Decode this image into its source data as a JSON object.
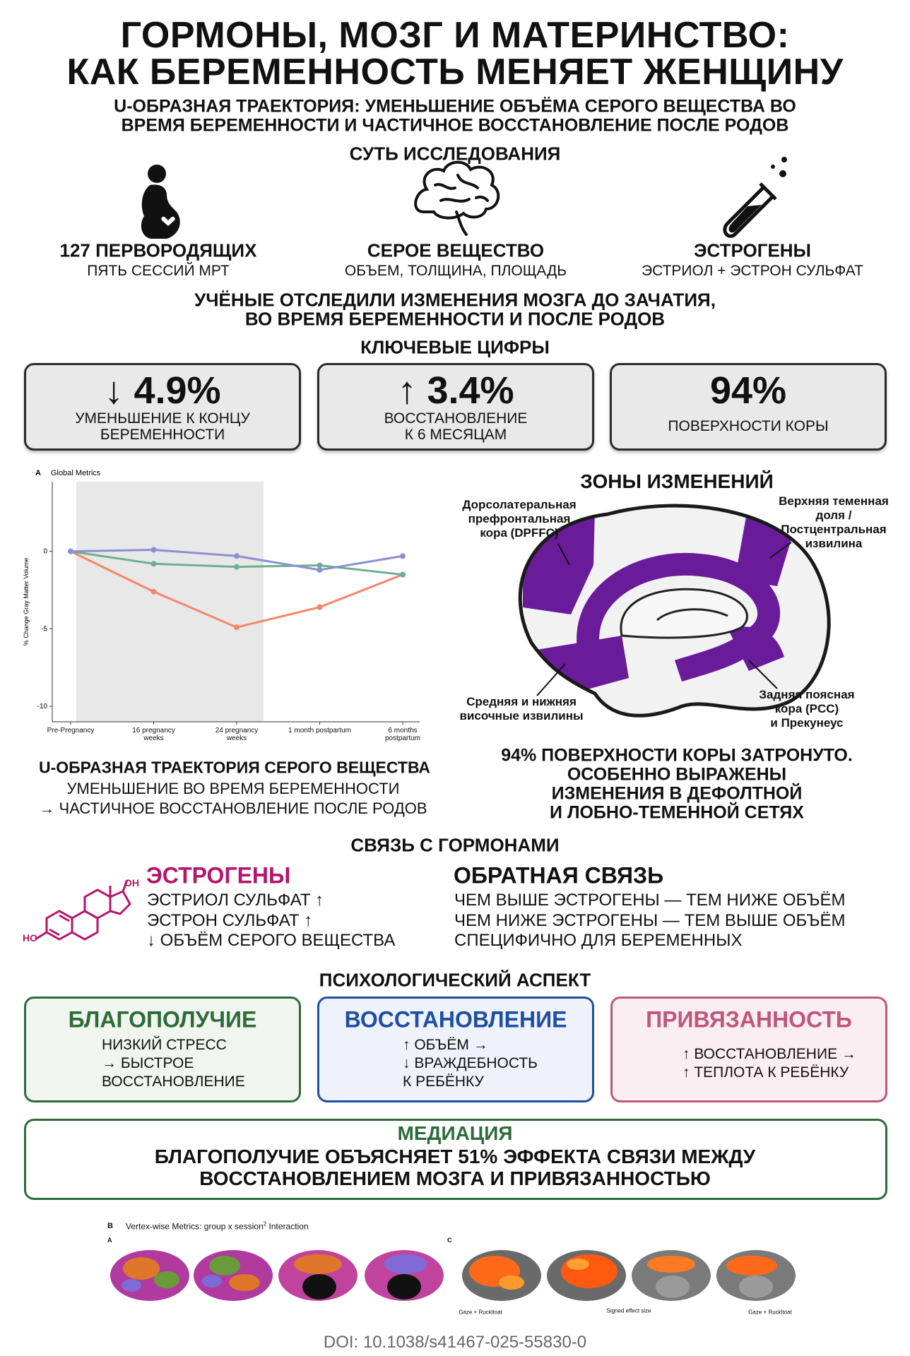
{
  "header": {
    "title_lines": [
      "ГОРМОНЫ, МОЗГ И МАТЕРИНСТВО:",
      "КАК БЕРЕМЕННОСТЬ МЕНЯЕТ ЖЕНЩИНУ"
    ],
    "subtitle_lines": [
      "U-ОБРАЗНАЯ ТРАЕКТОРИЯ: УМЕНЬШЕНИЕ ОБЪЁМА СЕРОГО ВЕЩЕСТВА ВО",
      "ВРЕМЯ БЕРЕМЕННОСТИ И ЧАСТИЧНОЕ ВОССТАНОВЛЕНИЕ ПОСЛЕ РОДОВ"
    ]
  },
  "study": {
    "heading": "СУТЬ ИССЛЕДОВАНИЯ",
    "items": [
      {
        "label": "127 ПЕРВОРОДЯЩИХ",
        "sub": "ПЯТЬ СЕССИЙ МРТ"
      },
      {
        "label": "СЕРОЕ ВЕЩЕСТВО",
        "sub": "ОБЪЕМ, ТОЛЩИНА, ПЛОЩАДЬ"
      },
      {
        "label": "ЭСТРОГЕНЫ",
        "sub": "ЭСТРИОЛ + ЭСТРОН СУЛЬФАТ"
      }
    ],
    "summary_lines": [
      "УЧЁНЫЕ ОТСЛЕДИЛИ ИЗМЕНЕНИЯ МОЗГА ДО ЗАЧАТИЯ,",
      "ВО ВРЕМЯ БЕРЕМЕННОСТИ И ПОСЛЕ РОДОВ"
    ]
  },
  "key_figures": {
    "heading": "КЛЮЧЕВЫЕ ЦИФРЫ",
    "items": [
      {
        "value": "↓ 4.9%",
        "lines": [
          "УМЕНЬШЕНИЕ К КОНЦУ",
          "БЕРЕМЕННОСТИ"
        ]
      },
      {
        "value": "↑ 3.4%",
        "lines": [
          "ВОССТАНОВЛЕНИЕ",
          "К 6 МЕСЯЦАМ"
        ]
      },
      {
        "value": "94%",
        "lines": [
          "ПОВЕРХНОСТИ КОРЫ"
        ]
      }
    ]
  },
  "chart_data": {
    "type": "line",
    "panel_label": "A",
    "title": "Global Metrics",
    "y_label": "% Change Gray Matter Volume",
    "categories": [
      "Pre-Pregnancy",
      "16 pregnancy weeks",
      "24 pregnancy weeks",
      "1 month postpartum",
      "6 months postpartum"
    ],
    "ylim": [
      -11,
      4.5
    ],
    "yticks": [
      0,
      -5,
      -10
    ],
    "series": [
      {
        "color": "#f4866a",
        "values": [
          0,
          -2.6,
          -4.9,
          -3.6,
          -1.5
        ]
      },
      {
        "color": "#6faf8e",
        "values": [
          0,
          -0.8,
          -1.0,
          -0.9,
          -1.5
        ]
      },
      {
        "color": "#8b90d2",
        "values": [
          0,
          0.1,
          -0.3,
          -1.2,
          -0.3
        ]
      }
    ]
  },
  "zones": {
    "heading": "ЗОНЫ ИЗМЕНЕНИЙ",
    "labels": [
      [
        "Дорсолатеральная",
        "префронтальная",
        "кора (DPFFC)"
      ],
      [
        "Верхняя теменная",
        "доля /",
        "Постцентральная",
        "извилина"
      ],
      [
        "Средняя и нижняя",
        "височные извилины"
      ],
      [
        "Задняя поясная",
        "кора (PCC)",
        "и Прекунеус"
      ]
    ],
    "caption_lines": [
      "94% ПОВЕРХНОСТИ КОРЫ ЗАТРОНУТО.",
      "ОСОБЕННО ВЫРАЖЕНЫ",
      "ИЗМЕНЕНИЯ В ДЕФОЛТНОЙ",
      "И ЛОБНО-ТЕМЕННОЙ СЕТЯХ"
    ]
  },
  "trajectory": {
    "title": "U-ОБРАЗНАЯ ТРАЕКТОРИЯ СЕРОГО ВЕЩЕСТВА",
    "lines": [
      "УМЕНЬШЕНИЕ ВО ВРЕМЯ БЕРЕМЕННОСТИ",
      "→ ЧАСТИЧНОЕ ВОССТАНОВЛЕНИЕ ПОСЛЕ РОДОВ"
    ]
  },
  "hormones": {
    "heading": "СВЯЗЬ С ГОРМОНАМИ",
    "molecule_labels": [
      "OH",
      "HO"
    ],
    "estrogens": {
      "title": "ЭСТРОГЕНЫ",
      "lines": [
        "ЭСТРИОЛ СУЛЬФАТ ↑",
        "ЭСТРОН СУЛЬФАТ ↑",
        "↓ ОБЪЁМ СЕРОГО ВЕЩЕСТВА"
      ]
    },
    "feedback": {
      "title": "ОБРАТНАЯ СВЯЗЬ",
      "lines": [
        "ЧЕМ ВЫШЕ ЭСТРОГЕНЫ — ТЕМ НИЖЕ ОБЪЁМ",
        "ЧЕМ НИЖЕ ЭСТРОГЕНЫ — ТЕМ ВЫШЕ ОБЪЁМ",
        "СПЕЦИФИЧНО ДЛЯ БЕРЕМЕННЫХ"
      ]
    }
  },
  "psych": {
    "heading": "ПСИХОЛОГИЧЕСКИЙ АСПЕКТ",
    "cards": [
      {
        "title": "БЛАГОПОЛУЧИЕ",
        "lines": [
          "НИЗКИЙ СТРЕСС",
          "→ БЫСТРОЕ",
          "ВОССТАНОВЛЕНИЕ"
        ]
      },
      {
        "title": "ВОССТАНОВЛЕНИЕ",
        "lines": [
          "↑ ОБЪЁМ →",
          "↓ ВРАЖДЕБНОСТЬ",
          "К РЕБЁНКУ"
        ]
      },
      {
        "title": "ПРИВЯЗАННОСТЬ",
        "lines": [
          "↑ ВОССТАНОВЛЕНИЕ →",
          "↑ ТЕПЛОТА К РЕБЁНКУ"
        ]
      }
    ]
  },
  "mediation": {
    "title": "МЕДИАЦИЯ",
    "lines": [
      "БЛАГОПОЛУЧИЕ ОБЪЯСНЯЕТ 51% ЭФФЕКТА СВЯЗИ МЕЖДУ",
      "ВОССТАНОВЛЕНИЕМ МОЗГА И ПРИВЯЗАННОСТЬЮ"
    ]
  },
  "figure_b": {
    "panel": "B",
    "title": "Vertex-wise Metrics: group x session",
    "superscript": "2",
    "title_end": " Interaction",
    "sub_panels": [
      "A",
      "C"
    ],
    "captions": [
      "Gaze + Ruckltoat",
      "Signed effect size",
      "Gaze + Ruckltoat"
    ]
  },
  "doi": "DOI: 10.1038/s41467-025-55830-0"
}
